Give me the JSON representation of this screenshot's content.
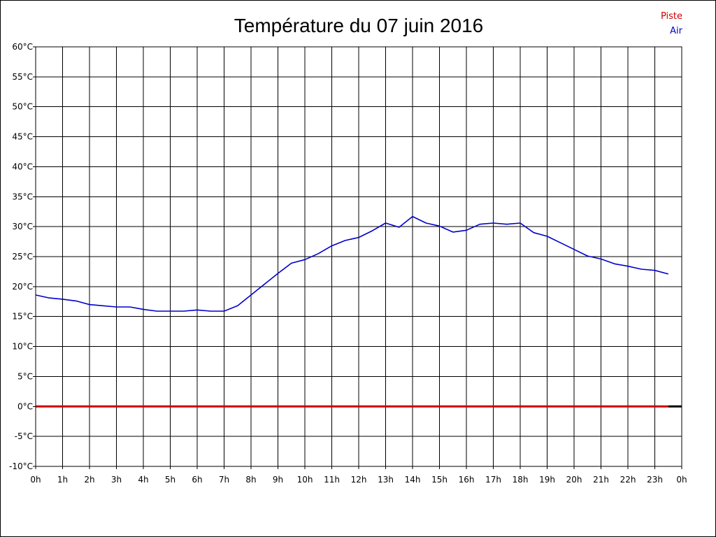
{
  "chart_data": {
    "type": "line",
    "title": "Température du 07 juin 2016",
    "xlabel": "",
    "ylabel": "",
    "x_tick_labels": [
      "0h",
      "1h",
      "2h",
      "3h",
      "4h",
      "5h",
      "6h",
      "7h",
      "8h",
      "9h",
      "10h",
      "11h",
      "12h",
      "13h",
      "14h",
      "15h",
      "16h",
      "17h",
      "18h",
      "19h",
      "20h",
      "21h",
      "22h",
      "23h",
      "0h"
    ],
    "y_tick_labels": [
      "60°C",
      "55°C",
      "50°C",
      "45°C",
      "40°C",
      "35°C",
      "30°C",
      "25°C",
      "20°C",
      "15°C",
      "10°C",
      "5°C",
      "0°C",
      "-5°C",
      "-10°C"
    ],
    "xlim": [
      0,
      24
    ],
    "ylim": [
      -10,
      60
    ],
    "grid": true,
    "legend_position": "top-right",
    "series": [
      {
        "name": "Piste",
        "color": "#cc0000",
        "x": [
          0,
          23.5
        ],
        "values": [
          0,
          0
        ]
      },
      {
        "name": "Air",
        "color": "#0000cc",
        "x": [
          0,
          0.5,
          1,
          1.5,
          2,
          2.5,
          3,
          3.5,
          4,
          4.5,
          5,
          5.5,
          6,
          6.5,
          7,
          7.5,
          8,
          8.5,
          9,
          9.5,
          10,
          10.5,
          11,
          11.5,
          12,
          12.5,
          13,
          13.5,
          14,
          14.5,
          15,
          15.5,
          16,
          16.5,
          17,
          17.5,
          18,
          18.5,
          19,
          19.5,
          20,
          20.5,
          21,
          21.5,
          22,
          22.5,
          23,
          23.5
        ],
        "values": [
          18.6,
          18.1,
          17.9,
          17.6,
          17.0,
          16.8,
          16.6,
          16.6,
          16.2,
          15.9,
          15.9,
          15.9,
          16.1,
          15.9,
          15.9,
          16.8,
          18.6,
          20.4,
          22.2,
          23.9,
          24.5,
          25.5,
          26.8,
          27.7,
          28.2,
          29.3,
          30.6,
          29.9,
          31.7,
          30.6,
          30.1,
          29.1,
          29.4,
          30.4,
          30.6,
          30.4,
          30.6,
          29.0,
          28.4,
          27.3,
          26.2,
          25.1,
          24.6,
          23.8,
          23.4,
          22.9,
          22.7,
          22.1
        ]
      }
    ],
    "baseline_end_color": "#000000"
  }
}
